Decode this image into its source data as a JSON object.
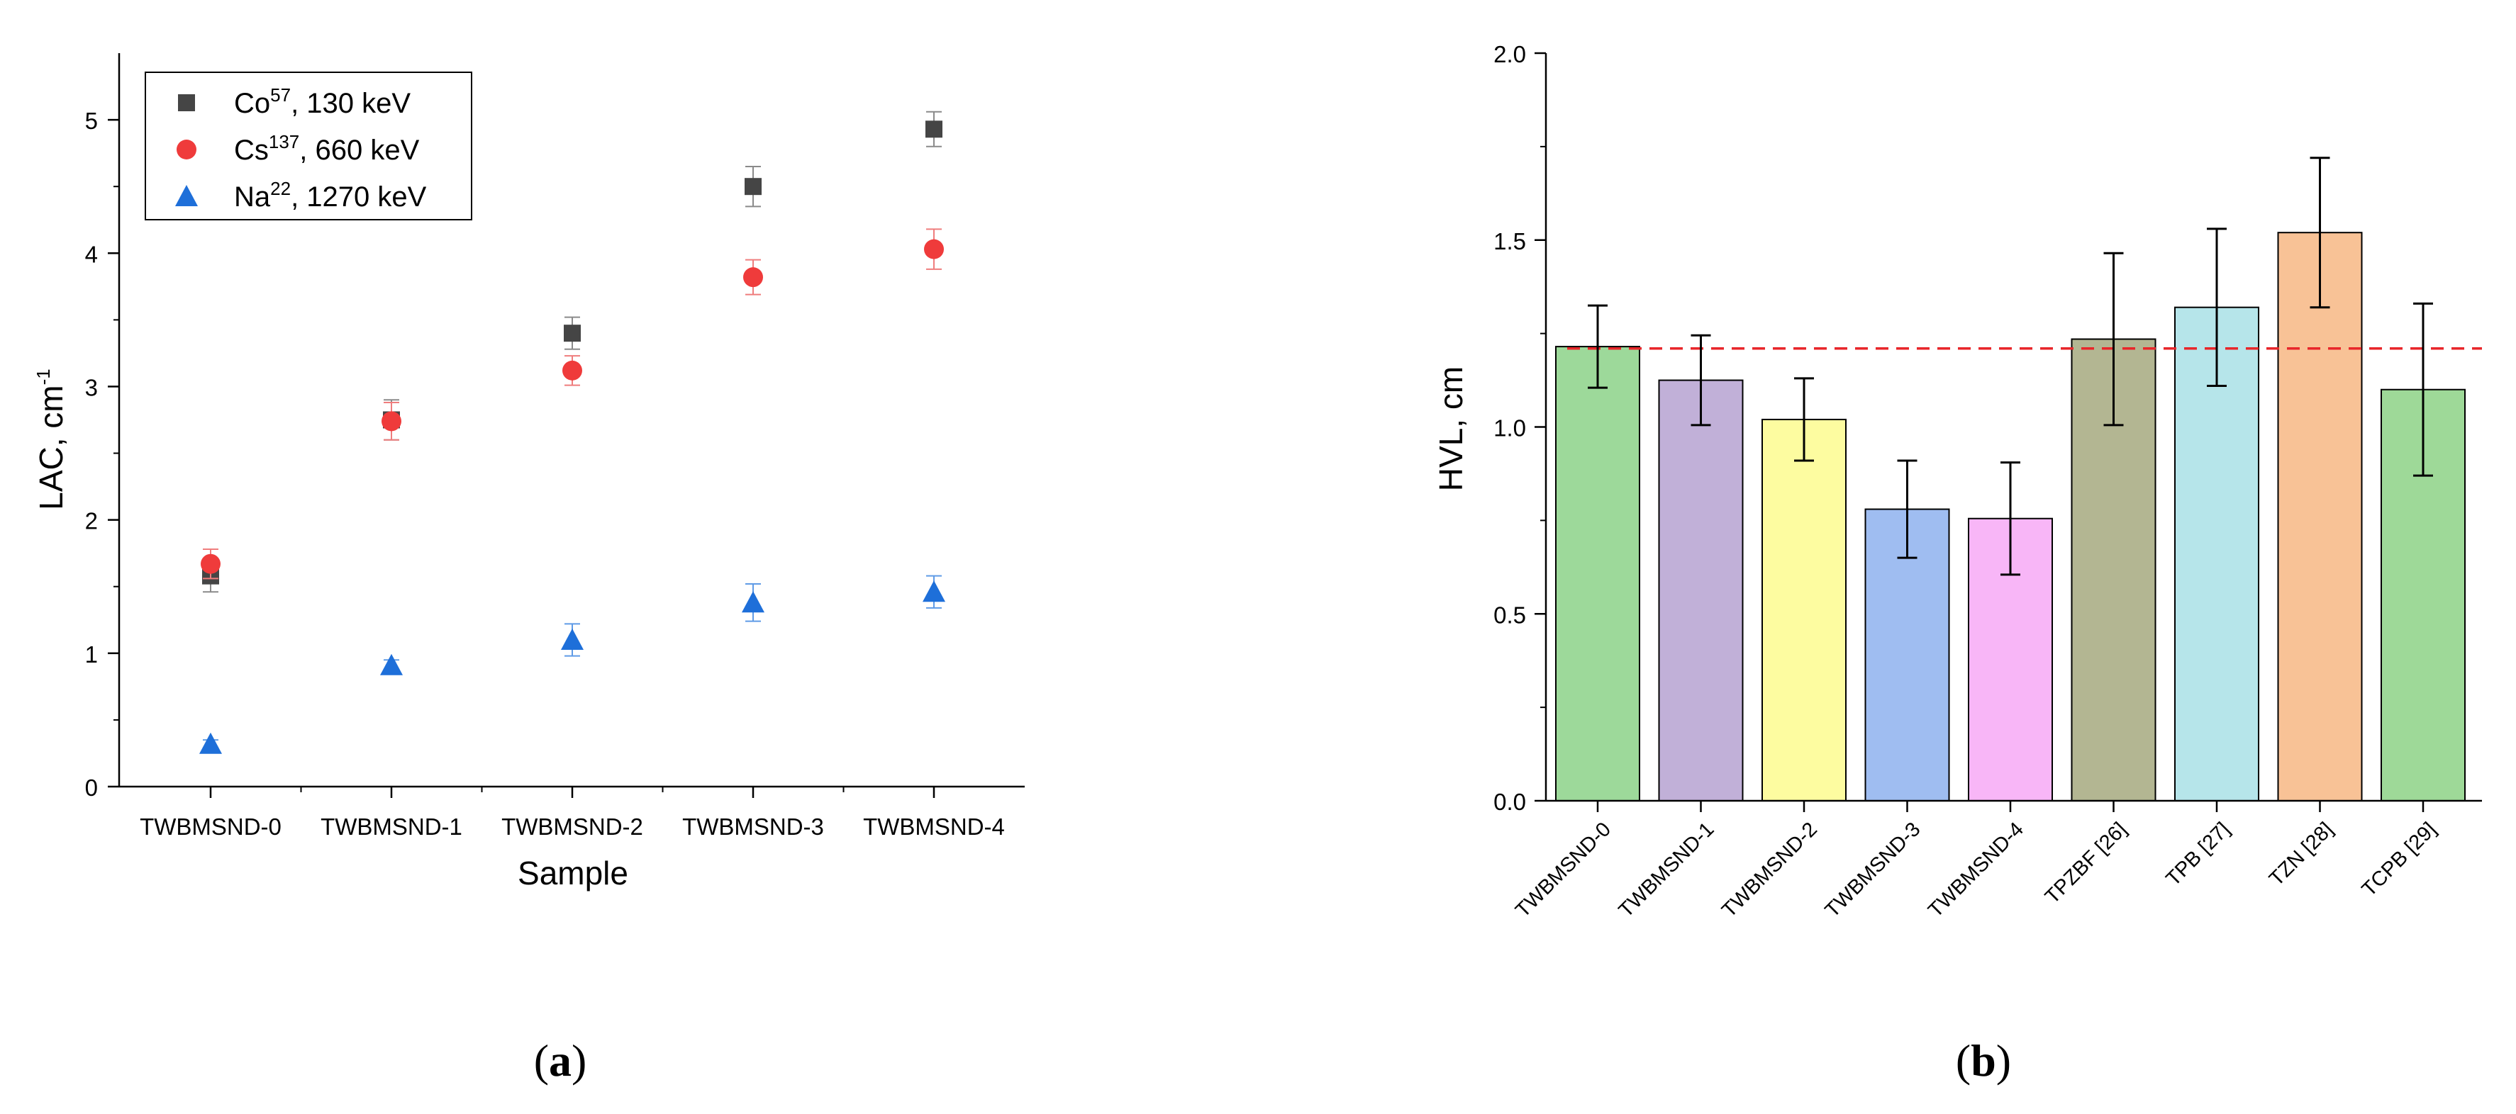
{
  "panel_labels": {
    "a": "a",
    "b": "b"
  },
  "chart_data": [
    {
      "id": "panel-a",
      "type": "scatter",
      "title": "",
      "xlabel": "Sample",
      "ylabel_main": "LAC, cm",
      "ylabel_sup": "-1",
      "categories": [
        "TWBMSND-0",
        "TWBMSND-1",
        "TWBMSND-2",
        "TWBMSND-3",
        "TWBMSND-4"
      ],
      "ylim": [
        0,
        5.5
      ],
      "yticks": [
        0,
        1,
        2,
        3,
        4,
        5
      ],
      "grid": false,
      "legend_position": "top-left",
      "series": [
        {
          "name": "Co57, 130 keV",
          "legend_base": "Co",
          "legend_sup": "57",
          "legend_tail": ", 130 keV",
          "marker": "square",
          "color": "#454545",
          "errcolor": "#8a8a8a",
          "values": [
            1.58,
            2.75,
            3.4,
            4.5,
            4.93
          ],
          "errors": [
            0.12,
            0.15,
            0.12,
            0.15,
            0.13
          ]
        },
        {
          "name": "Cs137, 660 keV",
          "legend_base": "Cs",
          "legend_sup": "137",
          "legend_tail": ", 660 keV",
          "marker": "circle",
          "color": "#ef3b3b",
          "errcolor": "#ef7d7d",
          "values": [
            1.67,
            2.74,
            3.12,
            3.82,
            4.03
          ],
          "errors": [
            0.11,
            0.14,
            0.11,
            0.13,
            0.15
          ]
        },
        {
          "name": "Na22, 1270 keV",
          "legend_base": "Na",
          "legend_sup": "22",
          "legend_tail": ", 1270 keV",
          "marker": "triangle",
          "color": "#1e6fd9",
          "errcolor": "#5f9be6",
          "values": [
            0.32,
            0.91,
            1.1,
            1.38,
            1.46
          ],
          "errors": [
            0.03,
            0.04,
            0.12,
            0.14,
            0.12
          ]
        }
      ]
    },
    {
      "id": "panel-b",
      "type": "bar",
      "title": "",
      "xlabel": "",
      "ylabel": "HVL, cm",
      "categories": [
        "TWBMSND-0",
        "TWBMSND-1",
        "TWBMSND-2",
        "TWBMSND-3",
        "TWBMSND-4",
        "TPZBF [26]",
        "TPB [27]",
        "TZN [28]",
        "TCPB [29]"
      ],
      "values": [
        1.215,
        1.125,
        1.02,
        0.78,
        0.755,
        1.235,
        1.32,
        1.52,
        1.1
      ],
      "errors": [
        0.11,
        0.12,
        0.11,
        0.13,
        0.15,
        0.23,
        0.21,
        0.2,
        0.23
      ],
      "colors": [
        "#9dd99a",
        "#c1b0d8",
        "#fdfca0",
        "#9fbdf1",
        "#f8b6f7",
        "#b3b692",
        "#b6e5ea",
        "#f8c296",
        "#9ed998"
      ],
      "reference_line": 1.21,
      "reference_color": "#e8262a",
      "ylim": [
        0,
        2.0
      ],
      "yticks": [
        0.0,
        0.5,
        1.0,
        1.5,
        2.0
      ],
      "ytick_labels": [
        "0.0",
        "0.5",
        "1.0",
        "1.5",
        "2.0"
      ],
      "grid": false
    }
  ]
}
